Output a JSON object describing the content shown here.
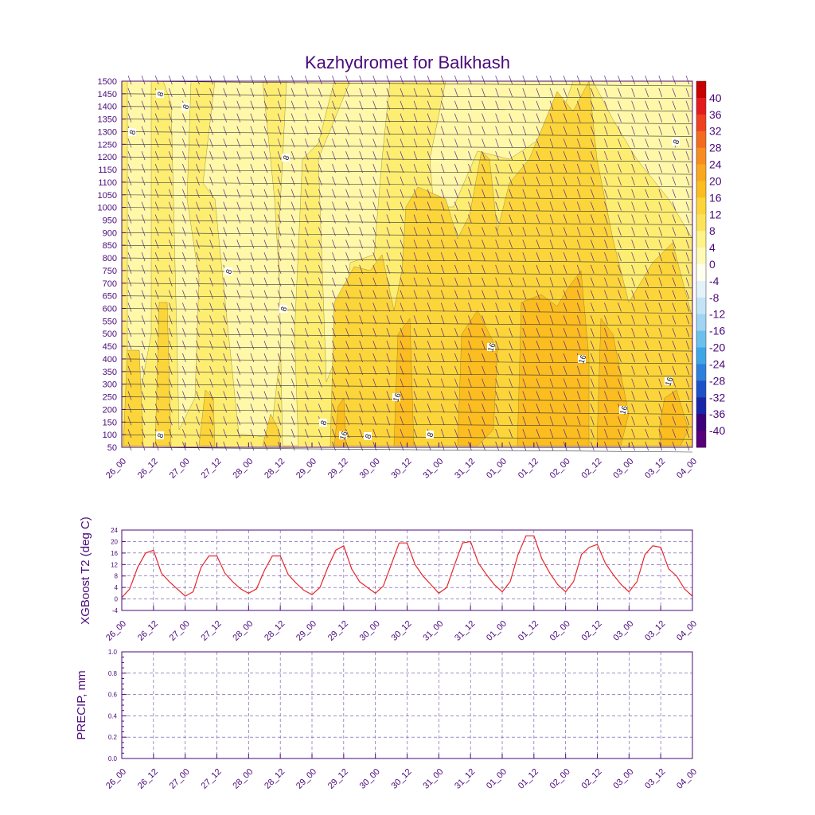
{
  "title": "Kazhydromet for Balkhash",
  "colors": {
    "axis": "#4b0a7a",
    "grid": "#6a4aa8",
    "t2_line": "#e8262b",
    "barb": "#5a2a8a",
    "isobar": "#333333"
  },
  "time_labels": [
    "26_00",
    "26_12",
    "27_00",
    "27_12",
    "28_00",
    "28_12",
    "29_00",
    "29_12",
    "30_00",
    "30_12",
    "31_00",
    "31_12",
    "01_00",
    "01_12",
    "02_00",
    "02_12",
    "03_00",
    "03_12",
    "04_00"
  ],
  "chart_data": [
    {
      "type": "heatmap",
      "name": "vertical-section",
      "xlabel": "",
      "ylabel": "",
      "y_ticks": [
        1500,
        1450,
        1400,
        1350,
        1300,
        1250,
        1200,
        1150,
        1100,
        1050,
        1000,
        950,
        900,
        850,
        800,
        750,
        700,
        650,
        600,
        550,
        500,
        450,
        400,
        350,
        300,
        250,
        200,
        150,
        100,
        50
      ],
      "colorbar_labels": [
        "40",
        "36",
        "32",
        "28",
        "24",
        "20",
        "16",
        "12",
        "8",
        "4",
        "0",
        "-4",
        "-8",
        "-12",
        "-16",
        "-20",
        "-24",
        "-28",
        "-32",
        "-36",
        "-40"
      ],
      "colorbar_colors": [
        "#c80000",
        "#e41a1c",
        "#f0401f",
        "#f46a1f",
        "#f78d1f",
        "#f9a81f",
        "#fbbd1f",
        "#fcd53a",
        "#fde35a",
        "#fff287",
        "#fffbb5",
        "#fffff0",
        "#e4f2fa",
        "#c2e4f6",
        "#9fd4f2",
        "#6cc0ee",
        "#3ea6e8",
        "#2d7fdc",
        "#1c51c8",
        "#1726a8",
        "#3b007a",
        "#58007a"
      ],
      "contour_labels": [
        "8",
        "8",
        "8",
        "8",
        "8",
        "8",
        "8",
        "8",
        "8",
        "8",
        "8",
        "16",
        "16",
        "16",
        "16",
        "16",
        "16"
      ],
      "fill_bands": [
        {
          "level": "8-12",
          "color": "#fdee72"
        },
        {
          "level": "12-16",
          "color": "#fcd53a"
        },
        {
          "level": "16-20",
          "color": "#fbbd1f"
        },
        {
          "level": "4-8",
          "color": "#fff8a8"
        }
      ]
    },
    {
      "type": "line",
      "name": "t2",
      "ylabel": "XGBoost T2 (deg C)",
      "y_ticks": [
        -4,
        0,
        4,
        8,
        12,
        16,
        20,
        24
      ],
      "ylim": [
        -4,
        24
      ],
      "series": [
        {
          "name": "T2",
          "values": [
            0.5,
            3.5,
            11,
            16,
            17,
            9,
            6,
            3.5,
            1,
            2.5,
            11,
            15,
            15,
            9,
            6,
            3.5,
            2,
            3.5,
            10,
            15,
            15,
            8.5,
            5.5,
            3,
            1.5,
            4,
            11,
            17,
            18.5,
            10.5,
            6,
            4,
            2,
            4.5,
            12,
            19.5,
            19.5,
            12,
            8,
            5,
            2,
            4,
            12,
            19.5,
            20,
            12.5,
            8.5,
            5,
            2.5,
            6,
            15.5,
            22,
            22,
            14,
            9,
            5,
            2.5,
            6,
            15.5,
            18,
            19,
            12.5,
            8.5,
            5,
            2.5,
            6,
            15.5,
            18.5,
            18,
            10.5,
            8,
            3.5,
            1
          ]
        }
      ]
    },
    {
      "type": "line",
      "name": "precip",
      "ylabel": "PRECIP, mm",
      "y_ticks": [
        "0.0",
        "0.2",
        "0.4",
        "0.6",
        "0.8",
        "1.0"
      ],
      "ylim": [
        0,
        1
      ],
      "series": [
        {
          "name": "PRECIP",
          "values": []
        }
      ]
    }
  ]
}
